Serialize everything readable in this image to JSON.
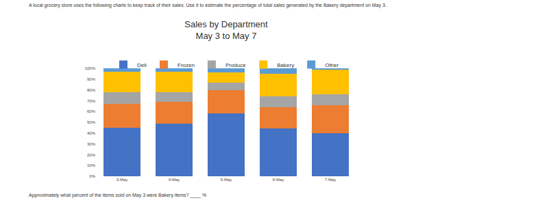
{
  "chart_data": {
    "type": "bar",
    "title": "Sales by Department",
    "subtitle": "May 3 to May 7",
    "annotations": [
      "A local grocery store uses the following charts to keep track of their sales. Use it to estimate the percentage of total sales generated by the Bakery department on May 3.",
      "Approximately what percent of the items sold on May 3 were Bakery items? ____ %"
    ],
    "categories": [
      "3-May",
      "4-May",
      "5-May",
      "6-May",
      "7-May"
    ],
    "series": [
      {
        "name": "Deli",
        "color": "#4472c4",
        "values": [
          45,
          49,
          58,
          44,
          40
        ]
      },
      {
        "name": "Frozen",
        "color": "#ed7d31",
        "values": [
          22,
          20,
          22,
          20,
          26
        ]
      },
      {
        "name": "Produce",
        "color": "#a5a5a5",
        "values": [
          11,
          9,
          7,
          10,
          10
        ]
      },
      {
        "name": "Bakery",
        "color": "#ffc000",
        "values": [
          19,
          19,
          9,
          21,
          23
        ]
      },
      {
        "name": "Other",
        "color": "#5b9bd5",
        "values": [
          3,
          3,
          4,
          5,
          1
        ]
      }
    ],
    "stacked": true,
    "ylim": [
      0,
      100
    ],
    "yticks": [
      {
        "value": 0,
        "label": "0%"
      },
      {
        "value": 10,
        "label": "10%"
      },
      {
        "value": 20,
        "label": "20%"
      },
      {
        "value": 30,
        "label": "30%"
      },
      {
        "value": 40,
        "label": "40%"
      },
      {
        "value": 50,
        "label": "50%"
      },
      {
        "value": 60,
        "label": "60%"
      },
      {
        "value": 70,
        "label": "70%"
      },
      {
        "value": 80,
        "label": "80%"
      },
      {
        "value": 90,
        "label": "90%"
      },
      {
        "value": 100,
        "label": "100%"
      }
    ],
    "grid": false,
    "legend": "top"
  }
}
